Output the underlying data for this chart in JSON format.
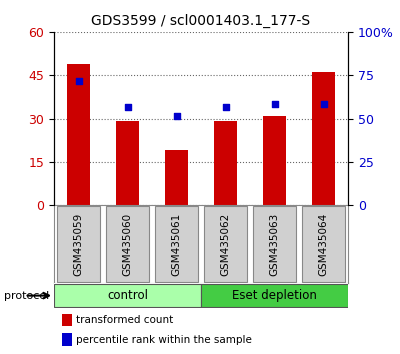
{
  "title": "GDS3599 / scl0001403.1_177-S",
  "samples": [
    "GSM435059",
    "GSM435060",
    "GSM435061",
    "GSM435062",
    "GSM435063",
    "GSM435064"
  ],
  "red_values": [
    49,
    29,
    19,
    29,
    31,
    46
  ],
  "blue_values_left_scale": [
    43,
    34,
    31,
    34,
    35,
    35
  ],
  "left_ylim": [
    0,
    60
  ],
  "right_ylim": [
    0,
    100
  ],
  "left_yticks": [
    0,
    15,
    30,
    45,
    60
  ],
  "right_yticks": [
    0,
    25,
    50,
    75,
    100
  ],
  "right_yticklabels": [
    "0",
    "25",
    "50",
    "75",
    "100%"
  ],
  "bar_color": "#cc0000",
  "dot_color": "#0000cc",
  "bar_width": 0.45,
  "groups": [
    {
      "label": "control",
      "start": 0,
      "end": 3,
      "color": "#aaffaa"
    },
    {
      "label": "Eset depletion",
      "start": 3,
      "end": 6,
      "color": "#44cc44"
    }
  ],
  "protocol_label": "protocol",
  "legend_items": [
    {
      "color": "#cc0000",
      "label": "transformed count"
    },
    {
      "color": "#0000cc",
      "label": "percentile rank within the sample"
    }
  ],
  "background_color": "#ffffff",
  "label_box_color": "#d0d0d0",
  "label_box_border": "#888888"
}
